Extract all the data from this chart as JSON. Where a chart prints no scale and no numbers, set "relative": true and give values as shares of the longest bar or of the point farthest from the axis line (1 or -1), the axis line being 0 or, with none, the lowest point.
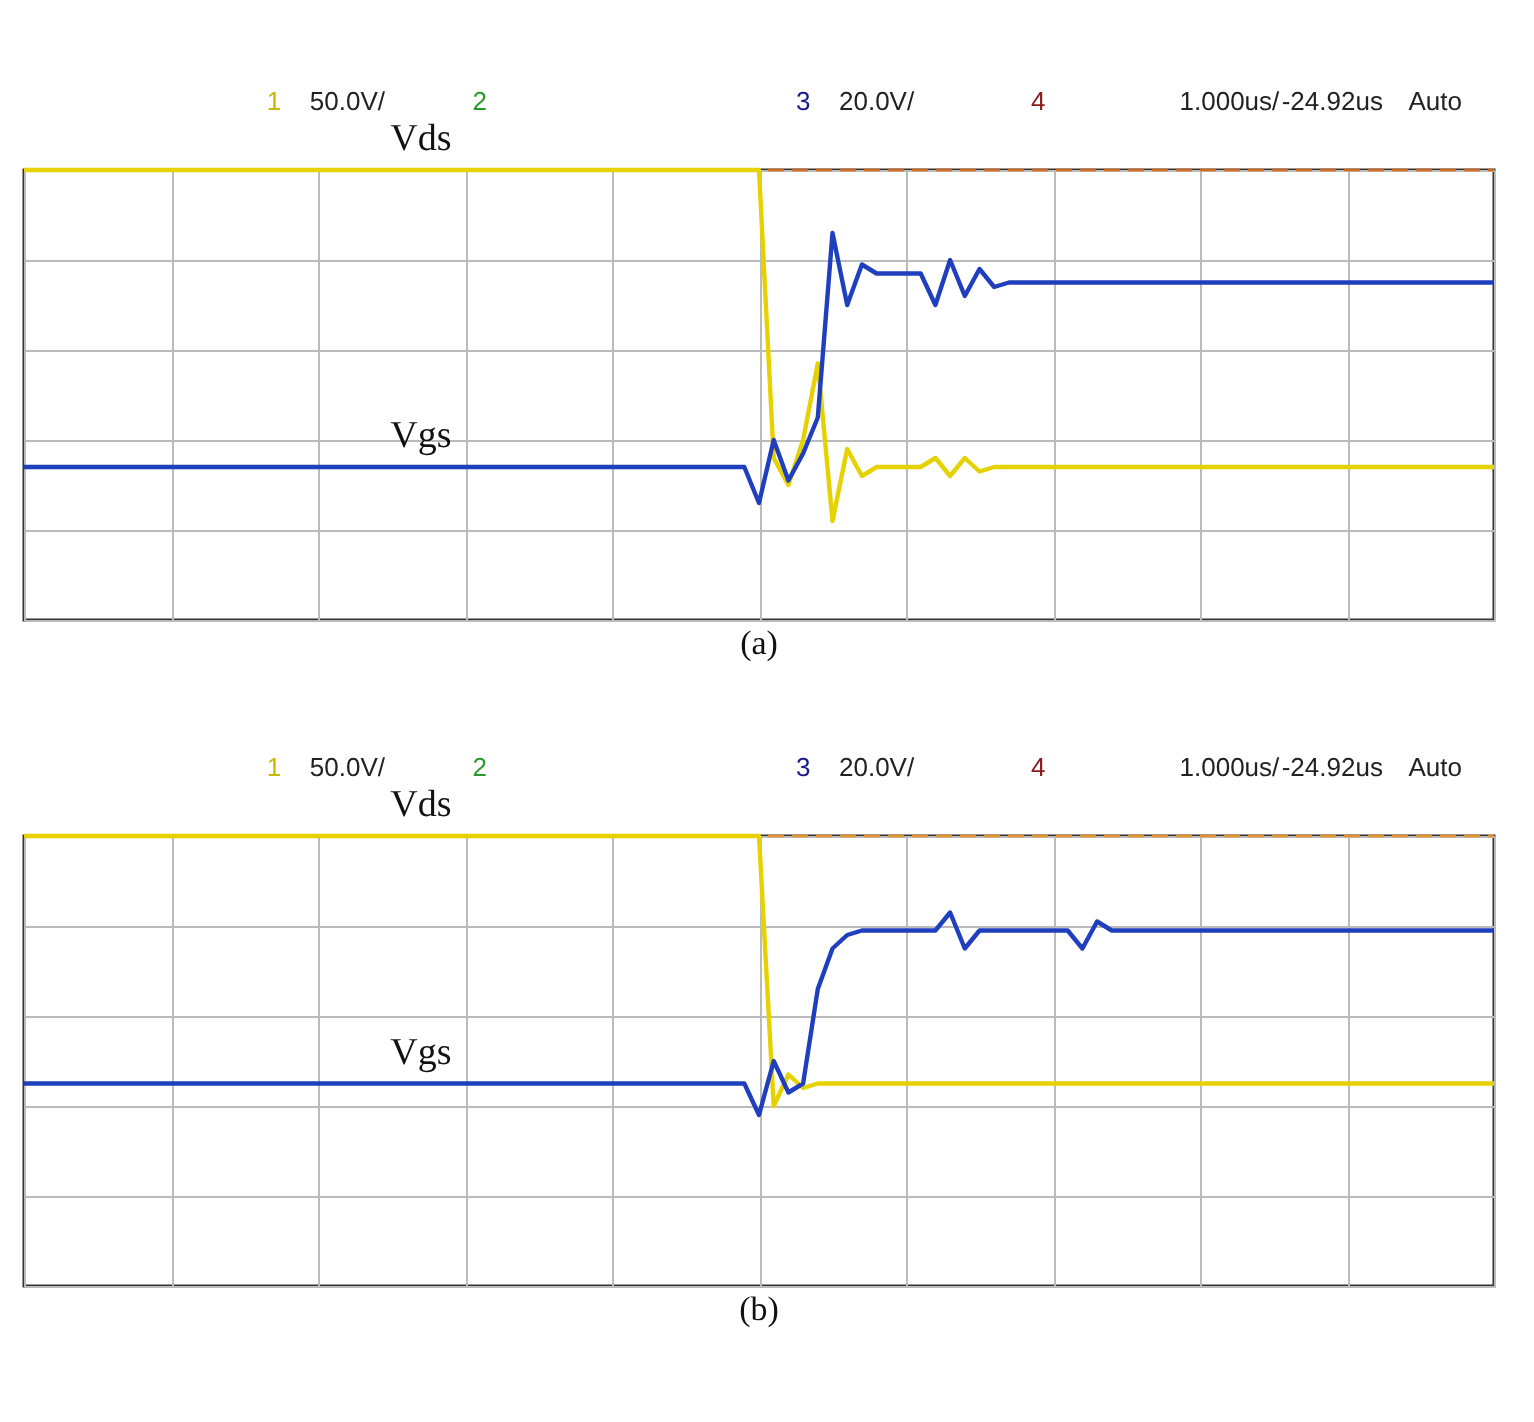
{
  "chart_data": [
    {
      "type": "line",
      "title": "(a)",
      "relative": true,
      "grid": true,
      "tick_labels": false,
      "line_style": "solid",
      "categories": [
        null,
        null,
        null,
        null,
        null,
        null,
        null,
        null,
        null,
        null,
        null,
        null,
        null,
        null,
        null,
        null,
        null,
        null,
        null,
        null,
        null,
        null,
        null,
        null,
        null,
        null,
        null,
        null,
        null,
        null,
        null,
        null,
        null,
        null,
        null,
        null,
        null,
        null,
        null,
        null,
        null,
        null,
        null,
        null,
        null,
        null,
        null,
        null,
        null,
        null,
        null,
        null,
        null,
        null,
        null,
        null,
        null,
        null,
        null,
        null,
        null,
        null,
        null,
        null,
        null,
        null,
        null,
        null,
        null,
        null,
        null,
        null,
        null,
        null,
        null,
        null,
        null,
        null,
        null,
        null,
        null,
        null,
        null,
        null,
        null,
        null,
        null,
        null,
        null,
        null,
        null,
        null,
        null,
        null,
        null,
        null,
        null,
        null,
        null,
        null,
        null
      ],
      "series": [
        {
          "name": "Vds",
          "color": "#e6d200",
          "values": [
            1,
            1,
            1,
            1,
            1,
            1,
            1,
            1,
            1,
            1,
            1,
            1,
            1,
            1,
            1,
            1,
            1,
            1,
            1,
            1,
            1,
            1,
            1,
            1,
            1,
            1,
            1,
            1,
            1,
            1,
            1,
            1,
            1,
            1,
            1,
            1,
            1,
            1,
            1,
            1,
            1,
            1,
            1,
            1,
            1,
            1,
            1,
            1,
            1,
            1,
            1,
            0.36,
            0.3,
            0.4,
            0.57,
            0.22,
            0.38,
            0.32,
            0.34,
            0.34,
            0.34,
            0.34,
            0.36,
            0.32,
            0.36,
            0.33,
            0.34,
            0.34,
            0.34,
            0.34,
            0.34,
            0.34,
            0.34,
            0.34,
            0.34,
            0.34,
            0.34,
            0.34,
            0.34,
            0.34,
            0.34,
            0.34,
            0.34,
            0.34,
            0.34,
            0.34,
            0.34,
            0.34,
            0.34,
            0.34,
            0.34,
            0.34,
            0.34,
            0.34,
            0.34,
            0.34,
            0.34,
            0.34,
            0.34,
            0.34,
            0.34
          ]
        },
        {
          "name": "Vgs",
          "color": "#1f3fbf",
          "values": [
            0.34,
            0.34,
            0.34,
            0.34,
            0.34,
            0.34,
            0.34,
            0.34,
            0.34,
            0.34,
            0.34,
            0.34,
            0.34,
            0.34,
            0.34,
            0.34,
            0.34,
            0.34,
            0.34,
            0.34,
            0.34,
            0.34,
            0.34,
            0.34,
            0.34,
            0.34,
            0.34,
            0.34,
            0.34,
            0.34,
            0.34,
            0.34,
            0.34,
            0.34,
            0.34,
            0.34,
            0.34,
            0.34,
            0.34,
            0.34,
            0.34,
            0.34,
            0.34,
            0.34,
            0.34,
            0.34,
            0.34,
            0.34,
            0.34,
            0.34,
            0.26,
            0.4,
            0.31,
            0.37,
            0.45,
            0.86,
            0.7,
            0.79,
            0.77,
            0.77,
            0.77,
            0.77,
            0.7,
            0.8,
            0.72,
            0.78,
            0.74,
            0.75,
            0.75,
            0.75,
            0.75,
            0.75,
            0.75,
            0.75,
            0.75,
            0.75,
            0.75,
            0.75,
            0.75,
            0.75,
            0.75,
            0.75,
            0.75,
            0.75,
            0.75,
            0.75,
            0.75,
            0.75,
            0.75,
            0.75,
            0.75,
            0.75,
            0.75,
            0.75,
            0.75,
            0.75,
            0.75,
            0.75,
            0.75,
            0.75,
            0.75
          ]
        }
      ],
      "ref_lines": [
        {
          "axis": "y",
          "value": 1,
          "label": null,
          "color": "#d2691e",
          "line_style": "dashed"
        }
      ],
      "annotations": [
        "1",
        "50.0V/",
        "2",
        "3",
        "20.0V/",
        "4",
        "1.000us/",
        "-24.92us",
        "Auto"
      ]
    },
    {
      "type": "line",
      "title": "(b)",
      "relative": true,
      "grid": true,
      "tick_labels": false,
      "line_style": "solid",
      "categories": [
        null,
        null,
        null,
        null,
        null,
        null,
        null,
        null,
        null,
        null,
        null,
        null,
        null,
        null,
        null,
        null,
        null,
        null,
        null,
        null,
        null,
        null,
        null,
        null,
        null,
        null,
        null,
        null,
        null,
        null,
        null,
        null,
        null,
        null,
        null,
        null,
        null,
        null,
        null,
        null,
        null,
        null,
        null,
        null,
        null,
        null,
        null,
        null,
        null,
        null,
        null,
        null,
        null,
        null,
        null,
        null,
        null,
        null,
        null,
        null,
        null,
        null,
        null,
        null,
        null,
        null,
        null,
        null,
        null,
        null,
        null,
        null,
        null,
        null,
        null,
        null,
        null,
        null,
        null,
        null,
        null,
        null,
        null,
        null,
        null,
        null,
        null,
        null,
        null,
        null,
        null,
        null,
        null,
        null,
        null,
        null,
        null,
        null,
        null,
        null,
        null
      ],
      "series": [
        {
          "name": "Vds",
          "color": "#e6d200",
          "values": [
            1,
            1,
            1,
            1,
            1,
            1,
            1,
            1,
            1,
            1,
            1,
            1,
            1,
            1,
            1,
            1,
            1,
            1,
            1,
            1,
            1,
            1,
            1,
            1,
            1,
            1,
            1,
            1,
            1,
            1,
            1,
            1,
            1,
            1,
            1,
            1,
            1,
            1,
            1,
            1,
            1,
            1,
            1,
            1,
            1,
            1,
            1,
            1,
            1,
            1,
            1,
            0.4,
            0.47,
            0.44,
            0.45,
            0.45,
            0.45,
            0.45,
            0.45,
            0.45,
            0.45,
            0.45,
            0.45,
            0.45,
            0.45,
            0.45,
            0.45,
            0.45,
            0.45,
            0.45,
            0.45,
            0.45,
            0.45,
            0.45,
            0.45,
            0.45,
            0.45,
            0.45,
            0.45,
            0.45,
            0.45,
            0.45,
            0.45,
            0.45,
            0.45,
            0.45,
            0.45,
            0.45,
            0.45,
            0.45,
            0.45,
            0.45,
            0.45,
            0.45,
            0.45,
            0.45,
            0.45,
            0.45,
            0.45,
            0.45,
            0.45
          ]
        },
        {
          "name": "Vgs",
          "color": "#1f3fbf",
          "values": [
            0.45,
            0.45,
            0.45,
            0.45,
            0.45,
            0.45,
            0.45,
            0.45,
            0.45,
            0.45,
            0.45,
            0.45,
            0.45,
            0.45,
            0.45,
            0.45,
            0.45,
            0.45,
            0.45,
            0.45,
            0.45,
            0.45,
            0.45,
            0.45,
            0.45,
            0.45,
            0.45,
            0.45,
            0.45,
            0.45,
            0.45,
            0.45,
            0.45,
            0.45,
            0.45,
            0.45,
            0.45,
            0.45,
            0.45,
            0.45,
            0.45,
            0.45,
            0.45,
            0.45,
            0.45,
            0.45,
            0.45,
            0.45,
            0.45,
            0.45,
            0.38,
            0.5,
            0.43,
            0.45,
            0.66,
            0.75,
            0.78,
            0.79,
            0.79,
            0.79,
            0.79,
            0.79,
            0.79,
            0.83,
            0.75,
            0.79,
            0.79,
            0.79,
            0.79,
            0.79,
            0.79,
            0.79,
            0.75,
            0.81,
            0.79,
            0.79,
            0.79,
            0.79,
            0.79,
            0.79,
            0.79,
            0.79,
            0.79,
            0.79,
            0.79,
            0.79,
            0.79,
            0.79,
            0.79,
            0.79,
            0.79,
            0.79,
            0.79,
            0.79,
            0.79,
            0.79,
            0.79,
            0.79,
            0.79,
            0.79,
            0.79
          ]
        }
      ],
      "ref_lines": [
        {
          "axis": "y",
          "value": 1,
          "label": null,
          "color": "#e8902a",
          "line_style": "dashed"
        }
      ],
      "annotations": [
        "1",
        "50.0V/",
        "2",
        "3",
        "20.0V/",
        "4",
        "1.000us/",
        "-24.92us",
        "Auto"
      ]
    }
  ]
}
